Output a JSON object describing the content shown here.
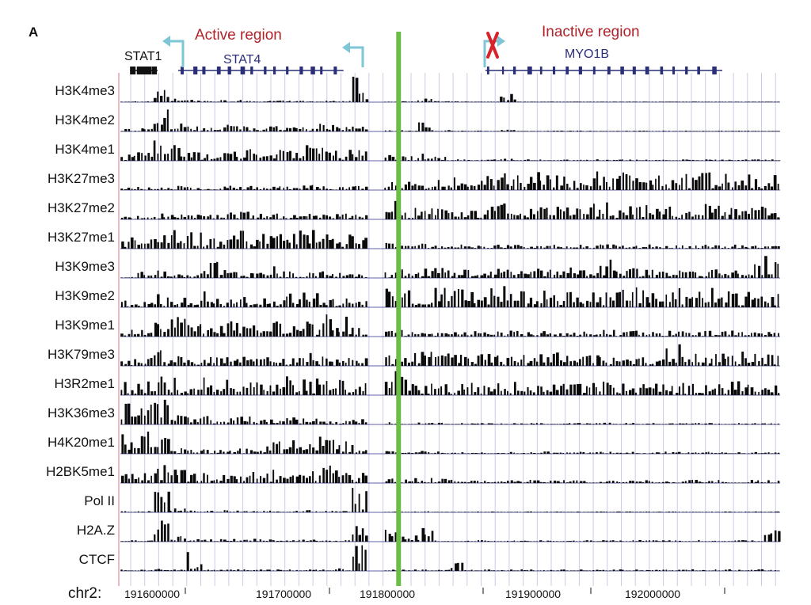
{
  "panel_label": "A",
  "regions": {
    "active_label": "Active region",
    "inactive_label": "Inactive region"
  },
  "genes": [
    {
      "name": "STAT1",
      "color": "#111111",
      "start": 191600000,
      "end": 191620000
    },
    {
      "name": "STAT4",
      "color": "#2b2f7a",
      "start": 191635000,
      "end": 191755000
    },
    {
      "name": "MYO1B",
      "color": "#2b2f7a",
      "start": 191858000,
      "end": 192030000
    }
  ],
  "colors": {
    "signal": "#0a0a0a",
    "baseline": "#2d2f86",
    "gridline": "#c8cde6",
    "region_divider": "#6cbd45",
    "tss_arrow": "#7ec6d6",
    "inactive_marker": "#d9222a",
    "left_border": "#e8a1a8"
  },
  "axis": {
    "chromosome_label": "chr2:",
    "ticks": [
      {
        "position": 191600000,
        "label": "191600000"
      },
      {
        "position": 191700000,
        "label": "191700000"
      },
      {
        "position": 191800000,
        "label": "191800000"
      },
      {
        "position": 191900000,
        "label": "191900000"
      },
      {
        "position": 192000000,
        "label": "192000000"
      }
    ],
    "range": [
      191593000,
      192072000
    ]
  },
  "chart_data": {
    "type": "bar",
    "title": "",
    "xlabel": "chr2:",
    "ylabel": "",
    "xlim": [
      191593000,
      192072000
    ],
    "region_boundary": 191795000,
    "tracks": [
      {
        "name": "H3K4me3",
        "profile": [
          0.03,
          0.05,
          0.55,
          0.12,
          0.08,
          0.05,
          0.08,
          0.1,
          0.05,
          0.06,
          0.05,
          0.06,
          0.06,
          0.05,
          0.95,
          0.0,
          0.03,
          0.04,
          0.15,
          0.04,
          0.03,
          0.02,
          0.02,
          0.35,
          0.02,
          0.02,
          0.02,
          0.02,
          0.02,
          0.02,
          0.02,
          0.02,
          0.02,
          0.02,
          0.02,
          0.02,
          0.02,
          0.02,
          0.02,
          0.02
        ]
      },
      {
        "name": "H3K4me2",
        "profile": [
          0.1,
          0.12,
          0.85,
          0.3,
          0.2,
          0.15,
          0.25,
          0.2,
          0.18,
          0.2,
          0.15,
          0.3,
          0.28,
          0.18,
          0.3,
          0.0,
          0.06,
          0.05,
          0.45,
          0.05,
          0.03,
          0.03,
          0.03,
          0.06,
          0.03,
          0.03,
          0.03,
          0.03,
          0.03,
          0.03,
          0.03,
          0.03,
          0.03,
          0.03,
          0.03,
          0.03,
          0.03,
          0.03,
          0.03,
          0.03
        ]
      },
      {
        "name": "H3K4me1",
        "profile": [
          0.25,
          0.3,
          0.75,
          0.55,
          0.35,
          0.3,
          0.45,
          0.45,
          0.35,
          0.4,
          0.35,
          0.55,
          0.6,
          0.4,
          0.45,
          0.0,
          0.22,
          0.18,
          0.35,
          0.15,
          0.06,
          0.05,
          0.05,
          0.08,
          0.05,
          0.05,
          0.06,
          0.05,
          0.05,
          0.05,
          0.06,
          0.05,
          0.05,
          0.05,
          0.05,
          0.05,
          0.05,
          0.05,
          0.05,
          0.05
        ]
      },
      {
        "name": "H3K27me3",
        "profile": [
          0.1,
          0.15,
          0.12,
          0.18,
          0.15,
          0.12,
          0.15,
          0.15,
          0.12,
          0.15,
          0.15,
          0.18,
          0.15,
          0.12,
          0.15,
          0.0,
          0.3,
          0.3,
          0.25,
          0.45,
          0.5,
          0.55,
          0.65,
          0.6,
          0.7,
          0.65,
          0.6,
          0.65,
          0.7,
          0.6,
          0.65,
          0.6,
          0.65,
          0.62,
          0.6,
          0.65,
          0.6,
          0.62,
          0.6,
          0.55
        ]
      },
      {
        "name": "H3K27me2",
        "profile": [
          0.12,
          0.15,
          0.25,
          0.18,
          0.2,
          0.22,
          0.25,
          0.3,
          0.2,
          0.22,
          0.25,
          0.2,
          0.22,
          0.2,
          0.18,
          0.0,
          0.65,
          0.45,
          0.4,
          0.45,
          0.5,
          0.45,
          0.55,
          0.6,
          0.5,
          0.55,
          0.6,
          0.5,
          0.55,
          0.6,
          0.55,
          0.5,
          0.55,
          0.6,
          0.5,
          0.55,
          0.5,
          0.55,
          0.5,
          0.45
        ]
      },
      {
        "name": "H3K27me1",
        "profile": [
          0.55,
          0.6,
          0.7,
          0.65,
          0.6,
          0.55,
          0.65,
          0.7,
          0.6,
          0.55,
          0.7,
          0.75,
          0.7,
          0.55,
          0.5,
          0.0,
          0.2,
          0.15,
          0.18,
          0.12,
          0.15,
          0.12,
          0.15,
          0.18,
          0.15,
          0.12,
          0.15,
          0.15,
          0.12,
          0.15,
          0.15,
          0.12,
          0.15,
          0.12,
          0.12,
          0.15,
          0.12,
          0.15,
          0.12,
          0.12
        ]
      },
      {
        "name": "H3K9me3",
        "profile": [
          0.05,
          0.35,
          0.4,
          0.15,
          0.2,
          0.8,
          0.3,
          0.25,
          0.2,
          0.45,
          0.25,
          0.2,
          0.25,
          0.2,
          0.15,
          0.0,
          0.2,
          0.3,
          0.4,
          0.55,
          0.35,
          0.3,
          0.35,
          0.3,
          0.4,
          0.35,
          0.3,
          0.4,
          0.35,
          0.75,
          0.4,
          0.35,
          0.3,
          0.35,
          0.3,
          0.4,
          0.35,
          0.3,
          0.55,
          0.95
        ]
      },
      {
        "name": "H3K9me2",
        "profile": [
          0.3,
          0.2,
          0.5,
          0.35,
          0.3,
          0.6,
          0.4,
          0.45,
          0.35,
          0.4,
          0.55,
          0.6,
          0.5,
          0.45,
          0.3,
          0.0,
          0.7,
          0.75,
          0.65,
          0.7,
          0.8,
          0.75,
          0.7,
          0.75,
          0.65,
          0.7,
          0.75,
          0.7,
          0.65,
          0.7,
          0.75,
          0.7,
          0.65,
          0.7,
          0.75,
          0.7,
          0.65,
          0.7,
          0.65,
          0.6
        ]
      },
      {
        "name": "H3K9me1",
        "profile": [
          0.35,
          0.45,
          0.95,
          0.7,
          0.55,
          0.45,
          0.55,
          0.5,
          0.45,
          0.55,
          0.5,
          0.65,
          0.8,
          0.7,
          0.55,
          0.0,
          0.2,
          0.25,
          0.3,
          0.25,
          0.2,
          0.25,
          0.2,
          0.22,
          0.2,
          0.25,
          0.2,
          0.22,
          0.2,
          0.25,
          0.2,
          0.22,
          0.2,
          0.22,
          0.2,
          0.22,
          0.2,
          0.22,
          0.2,
          0.2
        ]
      },
      {
        "name": "H3K79me3",
        "profile": [
          0.25,
          0.35,
          0.55,
          0.4,
          0.35,
          0.4,
          0.45,
          0.4,
          0.35,
          0.4,
          0.35,
          0.45,
          0.4,
          0.35,
          0.3,
          0.0,
          0.4,
          0.45,
          0.5,
          0.45,
          0.4,
          0.45,
          0.5,
          0.45,
          0.4,
          0.45,
          0.5,
          0.45,
          0.4,
          0.45,
          0.5,
          0.45,
          0.4,
          0.8,
          0.45,
          0.4,
          0.45,
          0.5,
          0.45,
          0.4
        ]
      },
      {
        "name": "H3R2me1",
        "profile": [
          0.55,
          0.6,
          0.7,
          0.65,
          0.6,
          0.65,
          0.7,
          0.65,
          0.6,
          0.65,
          0.7,
          0.65,
          0.6,
          0.55,
          0.5,
          0.0,
          0.85,
          0.7,
          0.55,
          0.5,
          0.45,
          0.5,
          0.45,
          0.5,
          0.45,
          0.5,
          0.45,
          0.5,
          0.45,
          0.5,
          0.45,
          0.5,
          0.45,
          0.5,
          0.45,
          0.5,
          0.45,
          0.5,
          0.45,
          0.45
        ]
      },
      {
        "name": "H3K36me3",
        "profile": [
          0.8,
          0.75,
          0.95,
          0.4,
          0.25,
          0.3,
          0.25,
          0.3,
          0.25,
          0.3,
          0.25,
          0.3,
          0.25,
          0.2,
          0.2,
          0.0,
          0.08,
          0.06,
          0.08,
          0.06,
          0.05,
          0.06,
          0.05,
          0.06,
          0.05,
          0.06,
          0.05,
          0.06,
          0.05,
          0.06,
          0.05,
          0.06,
          0.05,
          0.06,
          0.05,
          0.06,
          0.05,
          0.06,
          0.05,
          0.05
        ]
      },
      {
        "name": "H4K20me1",
        "profile": [
          0.85,
          0.8,
          0.75,
          0.2,
          0.15,
          0.2,
          0.15,
          0.2,
          0.3,
          0.45,
          0.5,
          0.55,
          0.6,
          0.5,
          0.4,
          0.0,
          0.1,
          0.08,
          0.1,
          0.08,
          0.06,
          0.08,
          0.06,
          0.08,
          0.06,
          0.08,
          0.06,
          0.08,
          0.06,
          0.08,
          0.06,
          0.08,
          0.06,
          0.08,
          0.06,
          0.08,
          0.06,
          0.08,
          0.06,
          0.06
        ]
      },
      {
        "name": "H2BK5me1",
        "profile": [
          0.45,
          0.5,
          0.75,
          0.55,
          0.45,
          0.4,
          0.45,
          0.4,
          0.45,
          0.5,
          0.45,
          0.55,
          0.65,
          0.5,
          0.4,
          0.0,
          0.25,
          0.2,
          0.18,
          0.15,
          0.12,
          0.1,
          0.12,
          0.1,
          0.12,
          0.1,
          0.12,
          0.1,
          0.12,
          0.1,
          0.12,
          0.1,
          0.12,
          0.1,
          0.12,
          0.1,
          0.12,
          0.1,
          0.12,
          0.1
        ]
      },
      {
        "name": "Pol II",
        "profile": [
          0.05,
          0.05,
          0.85,
          0.15,
          0.08,
          0.06,
          0.08,
          0.06,
          0.08,
          0.06,
          0.06,
          0.08,
          0.06,
          0.05,
          0.9,
          0.0,
          0.03,
          0.03,
          0.04,
          0.03,
          0.03,
          0.03,
          0.03,
          0.03,
          0.03,
          0.03,
          0.03,
          0.03,
          0.03,
          0.03,
          0.03,
          0.03,
          0.03,
          0.03,
          0.03,
          0.03,
          0.03,
          0.03,
          0.03,
          0.03
        ]
      },
      {
        "name": "H2A.Z",
        "profile": [
          0.05,
          0.08,
          0.95,
          0.2,
          0.1,
          0.08,
          0.1,
          0.08,
          0.1,
          0.08,
          0.08,
          0.1,
          0.08,
          0.06,
          0.75,
          0.0,
          0.55,
          0.25,
          0.6,
          0.06,
          0.05,
          0.06,
          0.05,
          0.06,
          0.05,
          0.06,
          0.05,
          0.06,
          0.05,
          0.06,
          0.05,
          0.06,
          0.05,
          0.06,
          0.05,
          0.06,
          0.05,
          0.06,
          0.05,
          0.4
        ]
      },
      {
        "name": "CTCF",
        "profile": [
          0.05,
          0.06,
          0.08,
          0.05,
          0.75,
          0.06,
          0.05,
          0.06,
          0.05,
          0.06,
          0.05,
          0.06,
          0.05,
          0.1,
          0.95,
          0.0,
          0.06,
          0.05,
          0.06,
          0.05,
          0.3,
          0.05,
          0.06,
          0.05,
          0.06,
          0.05,
          0.06,
          0.05,
          0.06,
          0.05,
          0.06,
          0.05,
          0.06,
          0.05,
          0.06,
          0.05,
          0.06,
          0.05,
          0.06,
          0.05
        ]
      }
    ]
  }
}
